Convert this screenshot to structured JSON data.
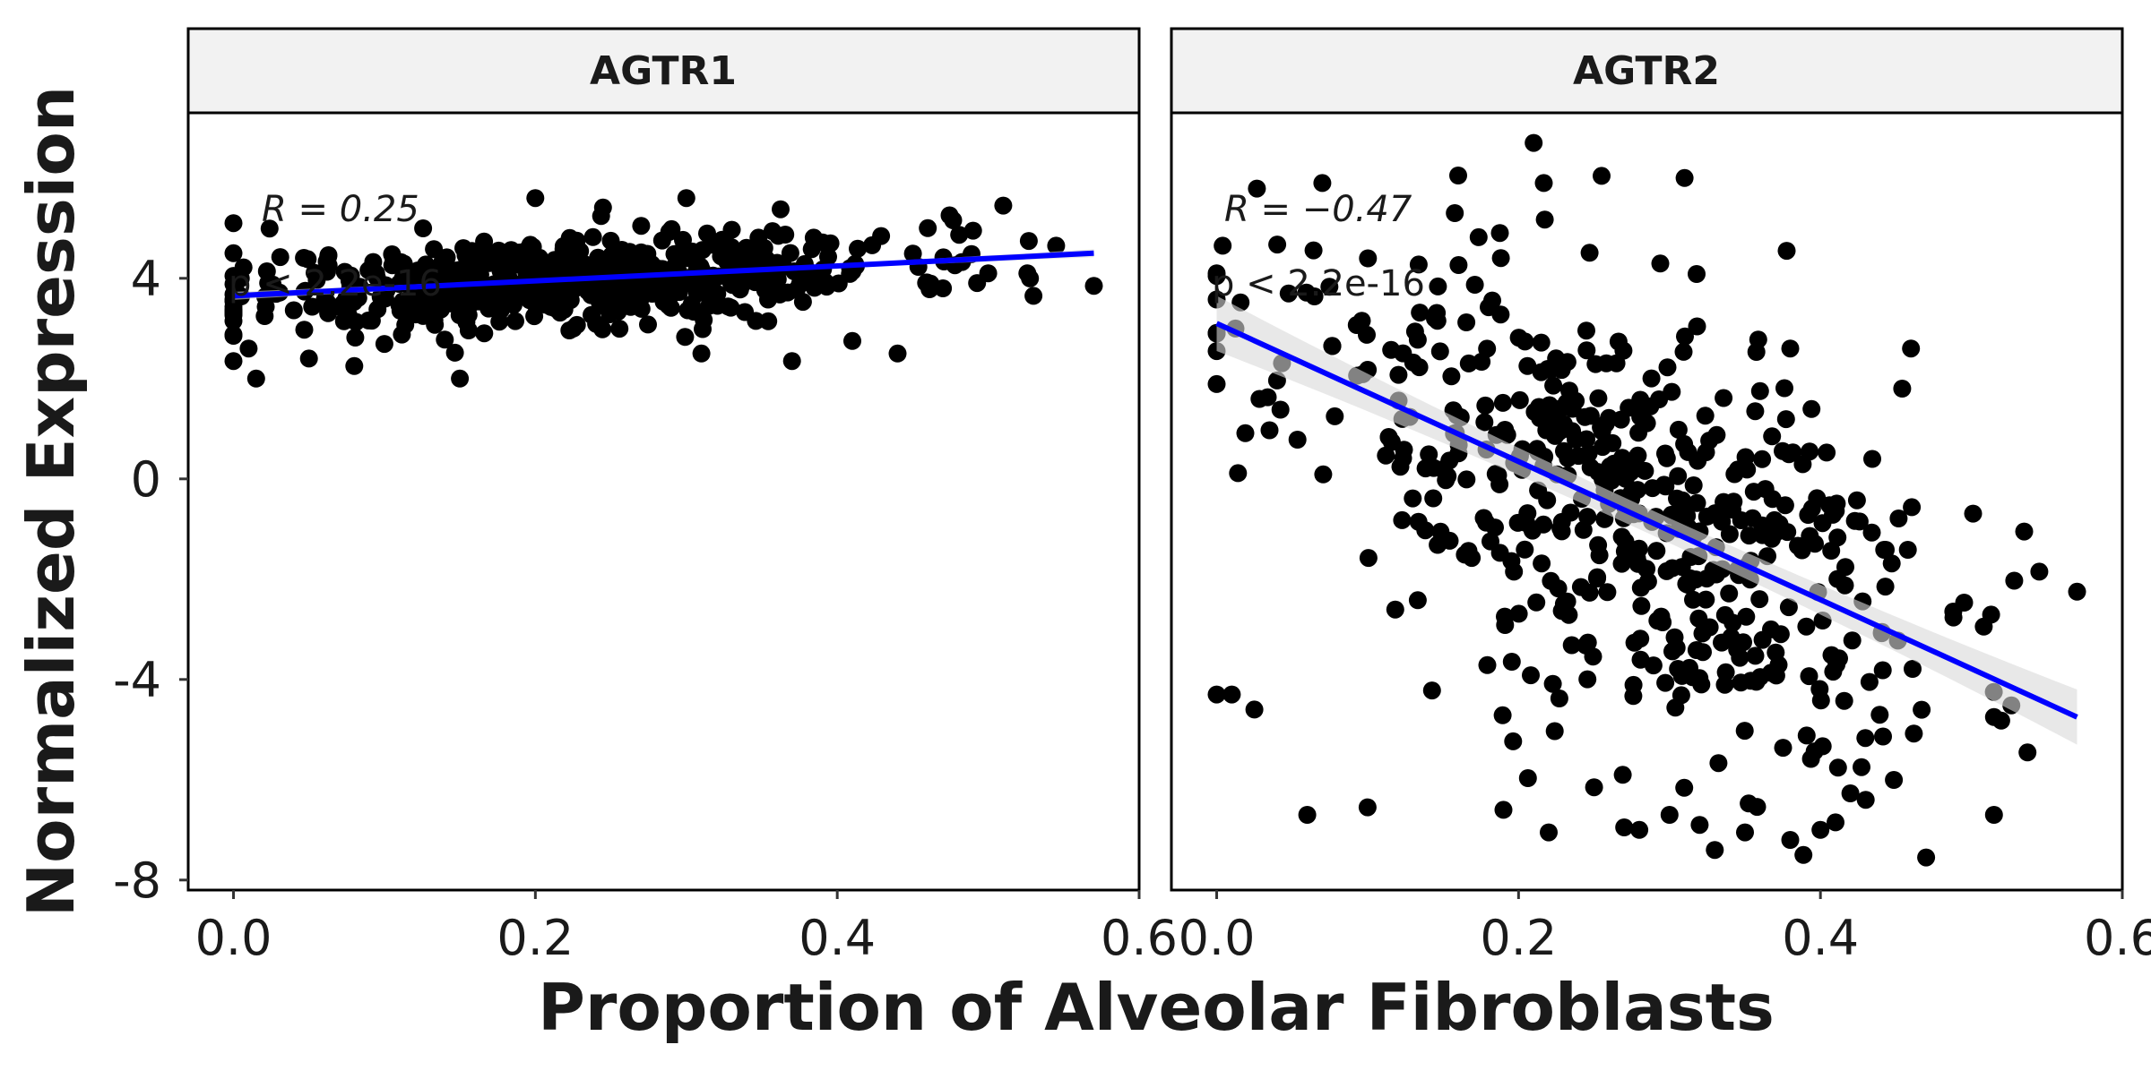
{
  "chart_data": {
    "type": "scatter",
    "ylabel": "Normalized Expression",
    "xlabel": "Proportion of Alveolar Fibroblasts",
    "ylim": [
      -8.2,
      7.3
    ],
    "xlim": [
      -0.03,
      0.6
    ],
    "x_ticks": [
      "0.0",
      "0.2",
      "0.4",
      "0.6"
    ],
    "x_tick_values": [
      0.0,
      0.2,
      0.4,
      0.6
    ],
    "y_ticks": [
      "-8",
      "-4",
      "0",
      "4"
    ],
    "y_tick_values": [
      -8,
      -4,
      0,
      4
    ],
    "grid": false,
    "point_color": "#000000",
    "line_color": "#0000ff",
    "band_color": "#d9d9d9",
    "panels": [
      {
        "label": "AGTR1",
        "stat_r": "R = 0.25",
        "stat_p": "p < 2.2e-16",
        "fit": {
          "x0": 0.0,
          "y0": 3.65,
          "x1": 0.57,
          "y1": 4.5,
          "band": 0.08
        },
        "cloud": {
          "n": 560,
          "xmean": 0.22,
          "xsd": 0.11,
          "xmin": 0.0,
          "xmax": 0.57,
          "intercept": 3.65,
          "slope": 1.5,
          "noise": 0.45,
          "seed": 11
        },
        "points": [
          [
            0.0,
            5.1
          ],
          [
            0.0,
            4.5
          ],
          [
            0.0,
            2.35
          ],
          [
            0.01,
            2.6
          ],
          [
            0.015,
            2.0
          ],
          [
            0.08,
            2.25
          ],
          [
            0.05,
            2.4
          ],
          [
            0.15,
            2.0
          ],
          [
            0.2,
            5.6
          ],
          [
            0.3,
            5.6
          ],
          [
            0.31,
            2.5
          ],
          [
            0.37,
            2.35
          ],
          [
            0.41,
            2.75
          ],
          [
            0.44,
            2.5
          ],
          [
            0.51,
            5.45
          ],
          [
            0.53,
            3.65
          ],
          [
            0.545,
            4.65
          ],
          [
            0.57,
            3.85
          ],
          [
            0.46,
            5.0
          ],
          [
            0.49,
            4.95
          ],
          [
            0.5,
            4.1
          ],
          [
            0.47,
            3.8
          ]
        ]
      },
      {
        "label": "AGTR2",
        "stat_r": "R = −0.47",
        "stat_p": "p < 2.2e-16",
        "fit": {
          "x0": 0.0,
          "y0": 3.1,
          "x1": 0.57,
          "y1": -4.75,
          "band": 0.55
        },
        "cloud": {
          "n": 520,
          "xmean": 0.26,
          "xsd": 0.11,
          "xmin": 0.0,
          "xmax": 0.57,
          "intercept": 3.1,
          "slope": -13.8,
          "noise": 2.1,
          "seed": 23
        },
        "points": [
          [
            0.21,
            6.7
          ],
          [
            0.31,
            6.0
          ],
          [
            0.07,
            5.9
          ],
          [
            0.16,
            6.05
          ],
          [
            0.0,
            4.1
          ],
          [
            0.0,
            -4.3
          ],
          [
            0.01,
            -4.3
          ],
          [
            0.025,
            -4.6
          ],
          [
            0.06,
            -6.7
          ],
          [
            0.1,
            -6.55
          ],
          [
            0.38,
            2.6
          ],
          [
            0.46,
            2.6
          ],
          [
            0.36,
            1.75
          ],
          [
            0.535,
            -1.05
          ],
          [
            0.545,
            -1.85
          ],
          [
            0.57,
            -2.25
          ],
          [
            0.47,
            -7.55
          ],
          [
            0.515,
            -6.7
          ],
          [
            0.33,
            -7.4
          ],
          [
            0.38,
            -7.2
          ],
          [
            0.41,
            -6.85
          ],
          [
            0.43,
            -6.4
          ],
          [
            0.25,
            -6.15
          ],
          [
            0.19,
            -6.6
          ],
          [
            0.22,
            -7.05
          ],
          [
            0.27,
            -6.95
          ],
          [
            0.28,
            -7.0
          ],
          [
            0.32,
            -6.9
          ],
          [
            0.35,
            -7.05
          ],
          [
            0.4,
            -7.0
          ],
          [
            0.3,
            -6.7
          ]
        ]
      }
    ]
  }
}
